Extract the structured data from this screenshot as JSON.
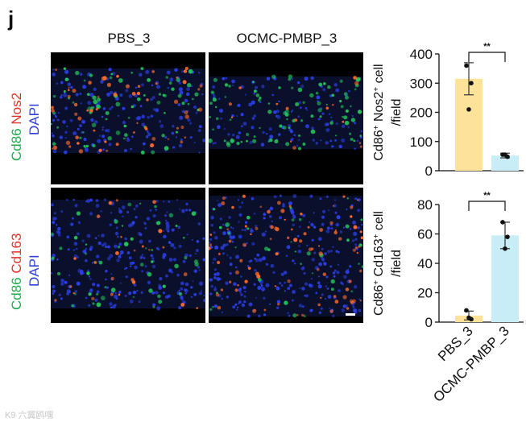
{
  "panel_letter": "j",
  "columns": [
    "PBS_3",
    "OCMC-PMBP_3"
  ],
  "rows": [
    {
      "stain_a": "Cd86",
      "stain_b": "Nos2",
      "stain_c": "DAPI"
    },
    {
      "stain_a": "Cd86",
      "stain_b": "Cd163",
      "stain_c": "DAPI"
    }
  ],
  "colors": {
    "green": "#1faa4d",
    "red": "#e0322a",
    "blue": "#2f3fd8",
    "pbs_bar": "#fde39a",
    "ocmc_bar": "#c9edf7"
  },
  "chart_data": [
    {
      "type": "bar",
      "categories": [
        "PBS_3",
        "OCMC-PMBP_3"
      ],
      "values": [
        315,
        52
      ],
      "errors": [
        55,
        8
      ],
      "points": [
        [
          360,
          300,
          210
        ],
        [
          55,
          48,
          55
        ]
      ],
      "ylabel_main": "Cd86",
      "ylabel_sup1": "+",
      "ylabel_mid": " Nos2",
      "ylabel_sup2": "+",
      "ylabel_end": " cell",
      "ylabel_line2": "/field",
      "ylim": [
        0,
        400
      ],
      "yticks": [
        "0",
        "100",
        "200",
        "300",
        "400"
      ],
      "significance": "**"
    },
    {
      "type": "bar",
      "categories": [
        "PBS_3",
        "OCMC-PMBP_3"
      ],
      "values": [
        4.5,
        59
      ],
      "errors": [
        3,
        9
      ],
      "points": [
        [
          8,
          2,
          3
        ],
        [
          68,
          58,
          50
        ]
      ],
      "ylabel_main": "Cd86",
      "ylabel_sup1": "+",
      "ylabel_mid": " Cd163",
      "ylabel_sup2": "+",
      "ylabel_end": " cell",
      "ylabel_line2": "/field",
      "ylim": [
        0,
        80
      ],
      "yticks": [
        "0",
        "20",
        "40",
        "60",
        "80"
      ],
      "significance": "**"
    }
  ],
  "x_tick_labels": [
    "PBS_3",
    "OCMC-PMBP_3"
  ],
  "watermark": "K9 六翼鸥嘿"
}
